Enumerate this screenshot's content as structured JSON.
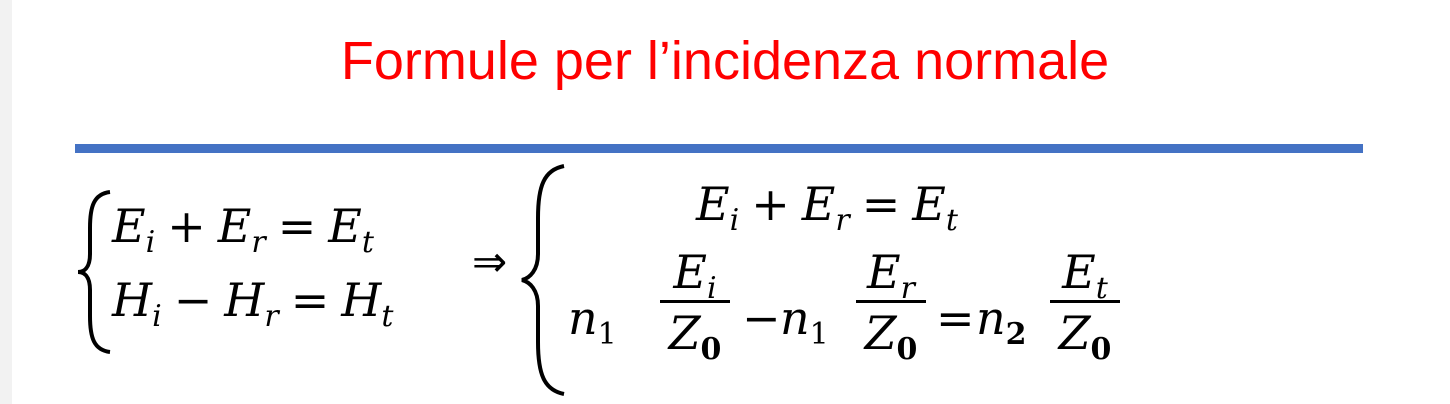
{
  "slide": {
    "title": "Formule per l’incidenza normale",
    "title_color": "#ff0000",
    "rule_color": "#4472c4"
  },
  "left_system": {
    "eq1": {
      "a": "E",
      "a_sub": "i",
      "op1": "+",
      "b": "E",
      "b_sub": "r",
      "eq": "=",
      "c": "E",
      "c_sub": "t"
    },
    "eq2": {
      "a": "H",
      "a_sub": "i",
      "op1": "−",
      "b": "H",
      "b_sub": "r",
      "eq": "=",
      "c": "H",
      "c_sub": "t"
    }
  },
  "implies": "⇒",
  "right_system": {
    "eq1": {
      "a": "E",
      "a_sub": "i",
      "op1": "+",
      "b": "E",
      "b_sub": "r",
      "eq": "=",
      "c": "E",
      "c_sub": "t"
    },
    "eq2": {
      "n1": "n",
      "n1_sub": "1",
      "frac1_num": "E",
      "frac1_num_sub": "i",
      "frac1_den": "Z",
      "frac1_den_sub": "0",
      "minus": "−",
      "n1b": "n",
      "n1b_sub": "1",
      "frac2_num": "E",
      "frac2_num_sub": "r",
      "frac2_den": "Z",
      "frac2_den_sub": "0",
      "eq": "=",
      "n2": "n",
      "n2_sub": "2",
      "frac3_num": "E",
      "frac3_num_sub": "t",
      "frac3_den": "Z",
      "frac3_den_sub": "0"
    }
  }
}
